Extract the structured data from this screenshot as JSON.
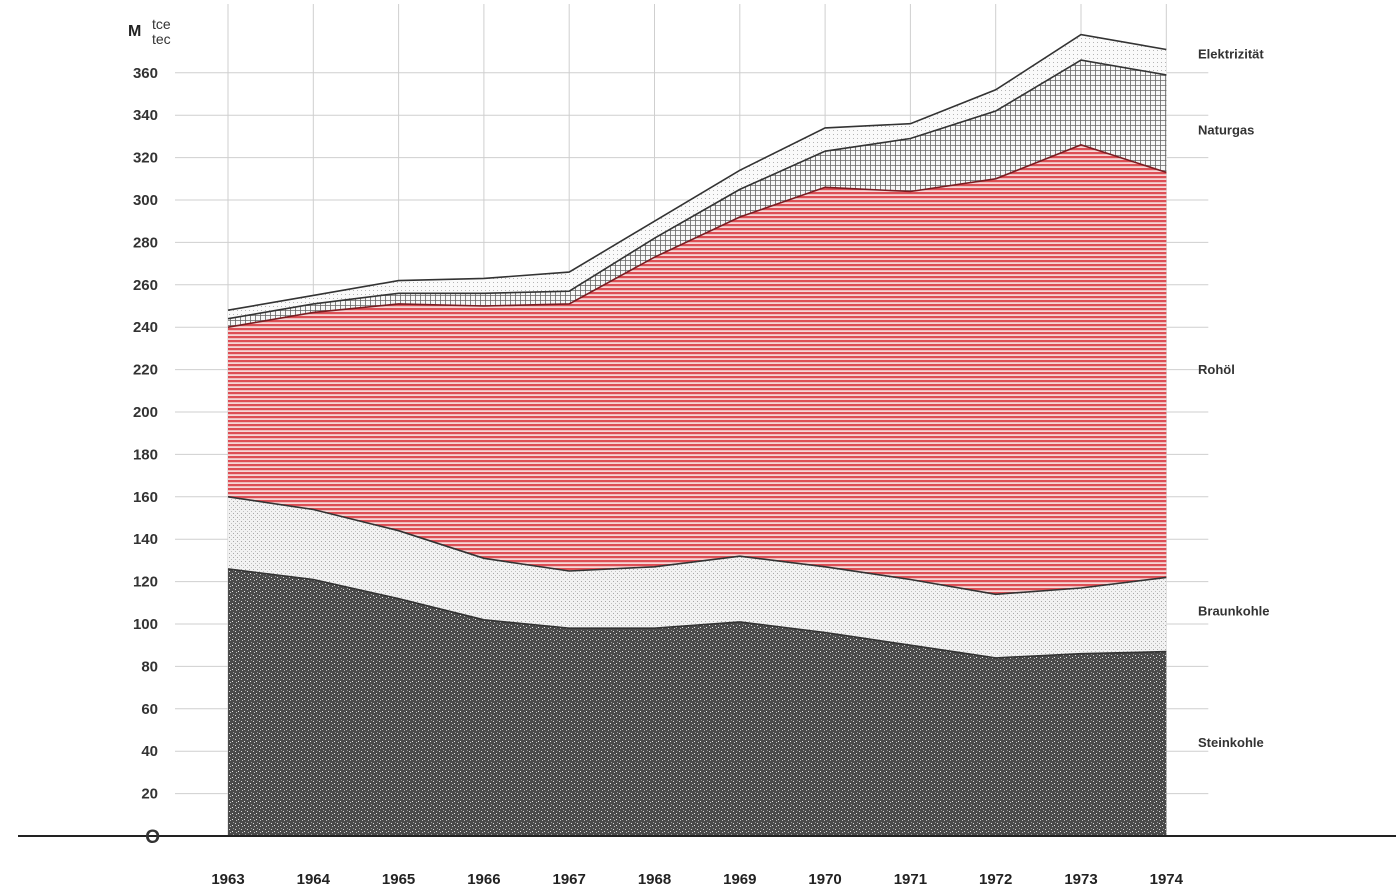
{
  "chart_data": {
    "type": "area",
    "stacked": true,
    "unit_label": "M",
    "unit_sub": [
      "tce",
      "tec"
    ],
    "zero_label": "O",
    "x": [
      "1963",
      "1964",
      "1965",
      "1966",
      "1967",
      "1968",
      "1969",
      "1970",
      "1971",
      "1972",
      "1973",
      "1974"
    ],
    "ylim": [
      0,
      370
    ],
    "yticks": [
      "20",
      "40",
      "60",
      "80",
      "100",
      "120",
      "140",
      "160",
      "180",
      "200",
      "220",
      "240",
      "260",
      "280",
      "300",
      "320",
      "340",
      "360"
    ],
    "grid": true,
    "legend_placement": "right",
    "series": [
      {
        "name": "Steinkohle",
        "values": [
          126,
          121,
          112,
          102,
          98,
          98,
          101,
          96,
          90,
          84,
          86,
          87
        ],
        "color": "#3a3a3a"
      },
      {
        "name": "Braunkohle",
        "values": [
          34,
          33,
          32,
          29,
          27,
          29,
          31,
          31,
          31,
          30,
          31,
          35
        ],
        "color": "#dcdcdc"
      },
      {
        "name": "Rohöl",
        "values": [
          80,
          93,
          107,
          119,
          126,
          146,
          160,
          179,
          183,
          196,
          209,
          191
        ],
        "color": "#e05a60"
      },
      {
        "name": "Naturgas",
        "values": [
          4,
          4,
          5,
          6,
          6,
          9,
          13,
          17,
          25,
          32,
          40,
          46
        ],
        "color": "#bfbfbf"
      },
      {
        "name": "Elektrizität",
        "values": [
          4,
          4,
          6,
          7,
          9,
          8,
          9,
          11,
          7,
          10,
          12,
          12
        ],
        "color": "#efefef"
      }
    ]
  }
}
